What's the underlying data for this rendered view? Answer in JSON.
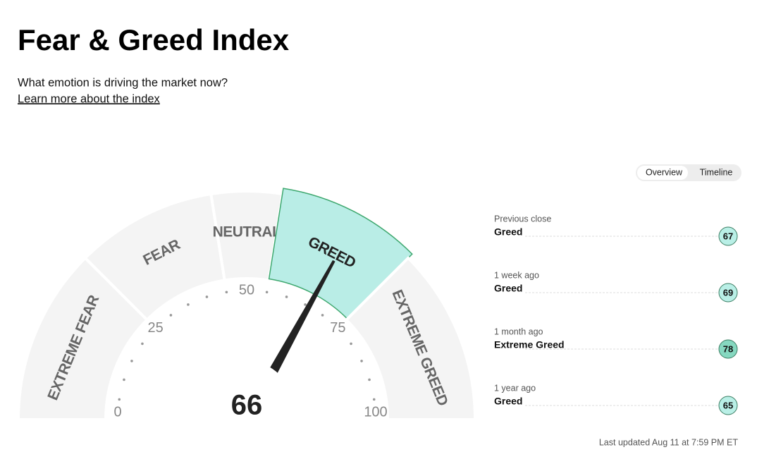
{
  "header": {
    "title": "Fear & Greed Index",
    "subtitle": "What emotion is driving the market now?",
    "link": "Learn more about the index"
  },
  "tabs": {
    "items": [
      "Overview",
      "Timeline"
    ],
    "active": 0
  },
  "gauge": {
    "range": [
      0,
      100
    ],
    "ticks": [
      0,
      25,
      50,
      75,
      100
    ],
    "value": 66,
    "active_segment": 3,
    "segments": [
      {
        "label": "EXTREME FEAR",
        "from": 0,
        "to": 25
      },
      {
        "label": "FEAR",
        "from": 25,
        "to": 45
      },
      {
        "label": "NEUTRAL",
        "from": 45,
        "to": 55
      },
      {
        "label": "GREED",
        "from": 55,
        "to": 75
      },
      {
        "label": "EXTREME GREED",
        "from": 75,
        "to": 100
      }
    ]
  },
  "history": [
    {
      "label": "Previous close",
      "rating": "Greed",
      "value": 67,
      "color": "#b9efe6"
    },
    {
      "label": "1 week ago",
      "rating": "Greed",
      "value": 69,
      "color": "#b9efe6"
    },
    {
      "label": "1 month ago",
      "rating": "Extreme Greed",
      "value": 78,
      "color": "#86d8c0"
    },
    {
      "label": "1 year ago",
      "rating": "Greed",
      "value": 65,
      "color": "#b9efe6"
    }
  ],
  "footer": "Last updated Aug 11 at 7:59 PM ET"
}
